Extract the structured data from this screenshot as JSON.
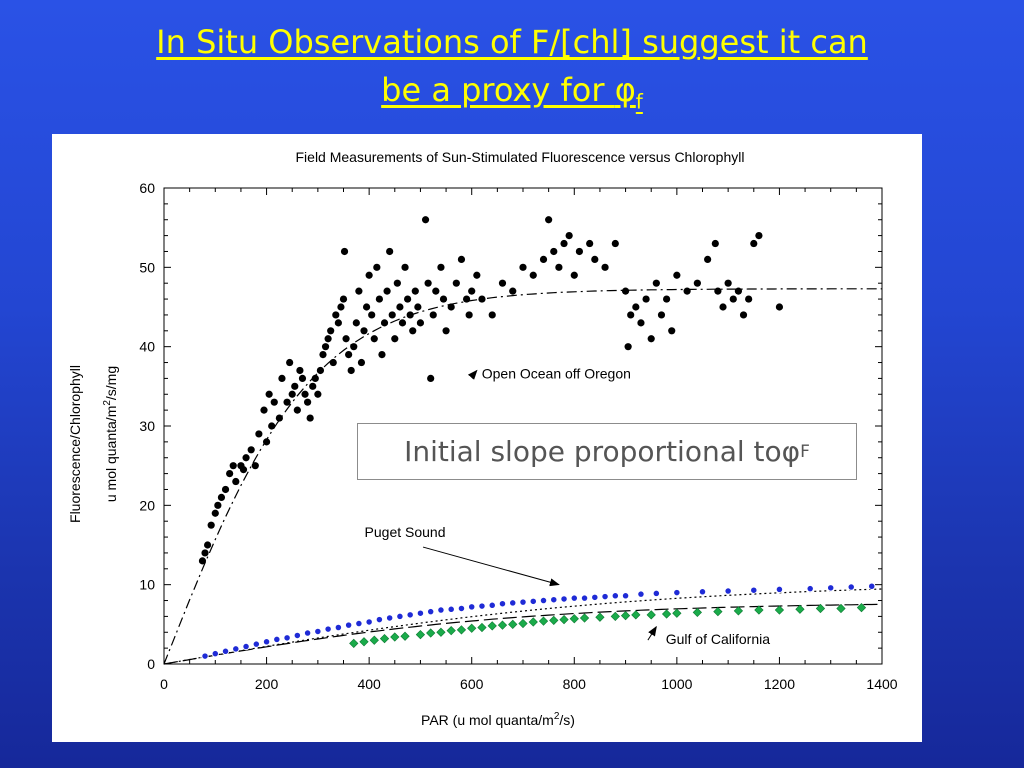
{
  "slide": {
    "title_line1": "In Situ Observations of F/[chl] suggest it can",
    "title_line2": "be a proxy for ",
    "title_symbol": "φ",
    "title_subscript": "f",
    "callout_text": "Initial slope proportional to ",
    "callout_symbol": "φ",
    "callout_subscript": "F",
    "colors": {
      "background": "#2346d2",
      "title": "#ffff00",
      "oregon": "#000000",
      "puget": "#1f2bd6",
      "gulf": "#1aab4a"
    }
  },
  "chart_data": {
    "type": "scatter",
    "title": "Field Measurements of Sun-Stimulated Fluorescence versus Chlorophyll",
    "xlabel_prefix": "PAR  (u mol quanta/m",
    "xlabel_sup": "2",
    "xlabel_suffix": "/s)",
    "ylabel_line1": "Fluorescence/Chlorophyll",
    "ylabel_line2_prefix": "u mol quanta/m",
    "ylabel_line2_sup": "2",
    "ylabel_line2_suffix": "/s/mg",
    "xlim": [
      0,
      1400
    ],
    "ylim": [
      0,
      60
    ],
    "x_ticks": [
      0,
      200,
      400,
      600,
      800,
      1000,
      1200,
      1400
    ],
    "y_ticks": [
      0,
      10,
      20,
      30,
      40,
      50,
      60
    ],
    "grid": false,
    "annotations": [
      {
        "text": "Open Ocean off Oregon",
        "x": 765,
        "y": 36,
        "arrow_to": [
          610,
          37
        ]
      },
      {
        "text": "Puget Sound",
        "x": 470,
        "y": 16,
        "arrow_to": [
          770,
          10
        ]
      },
      {
        "text": "Gulf of California",
        "x": 1080,
        "y": 2.5,
        "arrow_to": [
          960,
          4.7
        ]
      }
    ],
    "series": [
      {
        "name": "Open Ocean off Oregon",
        "marker": "circle",
        "fit": {
          "style": "dash-dot",
          "formula": "47.3*tanh(PAR/290)"
        },
        "points": [
          [
            75,
            13
          ],
          [
            80,
            14
          ],
          [
            85,
            15
          ],
          [
            92,
            17.5
          ],
          [
            100,
            19
          ],
          [
            105,
            20
          ],
          [
            112,
            21
          ],
          [
            120,
            22
          ],
          [
            128,
            24
          ],
          [
            135,
            25
          ],
          [
            140,
            23
          ],
          [
            150,
            25
          ],
          [
            155,
            24.5
          ],
          [
            160,
            26
          ],
          [
            170,
            27
          ],
          [
            178,
            25
          ],
          [
            185,
            29
          ],
          [
            195,
            32
          ],
          [
            200,
            28
          ],
          [
            205,
            34
          ],
          [
            210,
            30
          ],
          [
            215,
            33
          ],
          [
            225,
            31
          ],
          [
            230,
            36
          ],
          [
            240,
            33
          ],
          [
            245,
            38
          ],
          [
            250,
            34
          ],
          [
            255,
            35
          ],
          [
            260,
            32
          ],
          [
            265,
            37
          ],
          [
            270,
            36
          ],
          [
            275,
            34
          ],
          [
            280,
            33
          ],
          [
            285,
            31
          ],
          [
            290,
            35
          ],
          [
            295,
            36
          ],
          [
            300,
            34
          ],
          [
            305,
            37
          ],
          [
            310,
            39
          ],
          [
            315,
            40
          ],
          [
            320,
            41
          ],
          [
            325,
            42
          ],
          [
            330,
            38
          ],
          [
            335,
            44
          ],
          [
            340,
            43
          ],
          [
            345,
            45
          ],
          [
            350,
            46
          ],
          [
            352,
            52
          ],
          [
            355,
            41
          ],
          [
            360,
            39
          ],
          [
            365,
            37
          ],
          [
            370,
            40
          ],
          [
            375,
            43
          ],
          [
            380,
            47
          ],
          [
            385,
            38
          ],
          [
            390,
            42
          ],
          [
            395,
            45
          ],
          [
            400,
            49
          ],
          [
            405,
            44
          ],
          [
            410,
            41
          ],
          [
            415,
            50
          ],
          [
            420,
            46
          ],
          [
            425,
            39
          ],
          [
            430,
            43
          ],
          [
            435,
            47
          ],
          [
            440,
            52
          ],
          [
            445,
            44
          ],
          [
            450,
            41
          ],
          [
            455,
            48
          ],
          [
            460,
            45
          ],
          [
            465,
            43
          ],
          [
            470,
            50
          ],
          [
            475,
            46
          ],
          [
            480,
            44
          ],
          [
            485,
            42
          ],
          [
            490,
            47
          ],
          [
            495,
            45
          ],
          [
            500,
            43
          ],
          [
            510,
            56
          ],
          [
            515,
            48
          ],
          [
            520,
            36
          ],
          [
            525,
            44
          ],
          [
            530,
            47
          ],
          [
            540,
            50
          ],
          [
            545,
            46
          ],
          [
            550,
            42
          ],
          [
            560,
            45
          ],
          [
            570,
            48
          ],
          [
            580,
            51
          ],
          [
            590,
            46
          ],
          [
            595,
            44
          ],
          [
            600,
            47
          ],
          [
            610,
            49
          ],
          [
            620,
            46
          ],
          [
            640,
            44
          ],
          [
            660,
            48
          ],
          [
            680,
            47
          ],
          [
            700,
            50
          ],
          [
            720,
            49
          ],
          [
            740,
            51
          ],
          [
            750,
            56
          ],
          [
            760,
            52
          ],
          [
            770,
            50
          ],
          [
            780,
            53
          ],
          [
            790,
            54
          ],
          [
            800,
            49
          ],
          [
            810,
            52
          ],
          [
            830,
            53
          ],
          [
            840,
            51
          ],
          [
            860,
            50
          ],
          [
            880,
            53
          ],
          [
            900,
            47
          ],
          [
            905,
            40
          ],
          [
            910,
            44
          ],
          [
            920,
            45
          ],
          [
            930,
            43
          ],
          [
            940,
            46
          ],
          [
            950,
            41
          ],
          [
            960,
            48
          ],
          [
            970,
            44
          ],
          [
            980,
            46
          ],
          [
            990,
            42
          ],
          [
            1000,
            49
          ],
          [
            1020,
            47
          ],
          [
            1040,
            48
          ],
          [
            1060,
            51
          ],
          [
            1075,
            53
          ],
          [
            1080,
            47
          ],
          [
            1090,
            45
          ],
          [
            1100,
            48
          ],
          [
            1110,
            46
          ],
          [
            1120,
            47
          ],
          [
            1130,
            44
          ],
          [
            1140,
            46
          ],
          [
            1150,
            53
          ],
          [
            1160,
            54
          ],
          [
            1200,
            45
          ]
        ]
      },
      {
        "name": "Puget Sound",
        "marker": "circle-open",
        "fit": {
          "style": "dotted",
          "formula": "10.4*tanh(PAR/920)"
        },
        "points": [
          [
            80,
            1
          ],
          [
            100,
            1.3
          ],
          [
            120,
            1.6
          ],
          [
            140,
            1.9
          ],
          [
            160,
            2.2
          ],
          [
            180,
            2.5
          ],
          [
            200,
            2.8
          ],
          [
            220,
            3.1
          ],
          [
            240,
            3.3
          ],
          [
            260,
            3.6
          ],
          [
            280,
            3.9
          ],
          [
            300,
            4.1
          ],
          [
            320,
            4.4
          ],
          [
            340,
            4.6
          ],
          [
            360,
            4.9
          ],
          [
            380,
            5.1
          ],
          [
            400,
            5.3
          ],
          [
            420,
            5.6
          ],
          [
            440,
            5.8
          ],
          [
            460,
            6
          ],
          [
            480,
            6.2
          ],
          [
            500,
            6.4
          ],
          [
            520,
            6.6
          ],
          [
            540,
            6.8
          ],
          [
            560,
            6.9
          ],
          [
            580,
            7
          ],
          [
            600,
            7.2
          ],
          [
            620,
            7.3
          ],
          [
            640,
            7.4
          ],
          [
            660,
            7.6
          ],
          [
            680,
            7.7
          ],
          [
            700,
            7.8
          ],
          [
            720,
            7.9
          ],
          [
            740,
            8
          ],
          [
            760,
            8.1
          ],
          [
            780,
            8.2
          ],
          [
            800,
            8.3
          ],
          [
            820,
            8.3
          ],
          [
            840,
            8.4
          ],
          [
            860,
            8.5
          ],
          [
            880,
            8.6
          ],
          [
            900,
            8.6
          ],
          [
            930,
            8.8
          ],
          [
            960,
            8.9
          ],
          [
            1000,
            9
          ],
          [
            1050,
            9.1
          ],
          [
            1100,
            9.2
          ],
          [
            1150,
            9.3
          ],
          [
            1200,
            9.4
          ],
          [
            1260,
            9.5
          ],
          [
            1300,
            9.6
          ],
          [
            1340,
            9.7
          ],
          [
            1380,
            9.8
          ]
        ]
      },
      {
        "name": "Gulf of California",
        "marker": "diamond",
        "fit": {
          "style": "long-dash",
          "formula": "7.8*tanh(PAR/700)"
        },
        "points": [
          [
            370,
            2.6
          ],
          [
            390,
            2.8
          ],
          [
            410,
            3
          ],
          [
            430,
            3.2
          ],
          [
            450,
            3.4
          ],
          [
            470,
            3.5
          ],
          [
            500,
            3.7
          ],
          [
            520,
            3.9
          ],
          [
            540,
            4
          ],
          [
            560,
            4.2
          ],
          [
            580,
            4.3
          ],
          [
            600,
            4.5
          ],
          [
            620,
            4.6
          ],
          [
            640,
            4.8
          ],
          [
            660,
            4.9
          ],
          [
            680,
            5
          ],
          [
            700,
            5.1
          ],
          [
            720,
            5.3
          ],
          [
            740,
            5.4
          ],
          [
            760,
            5.5
          ],
          [
            780,
            5.6
          ],
          [
            800,
            5.7
          ],
          [
            820,
            5.8
          ],
          [
            850,
            5.9
          ],
          [
            880,
            6
          ],
          [
            900,
            6.1
          ],
          [
            920,
            6.2
          ],
          [
            950,
            6.2
          ],
          [
            980,
            6.3
          ],
          [
            1000,
            6.4
          ],
          [
            1040,
            6.5
          ],
          [
            1080,
            6.6
          ],
          [
            1120,
            6.7
          ],
          [
            1160,
            6.8
          ],
          [
            1200,
            6.8
          ],
          [
            1240,
            6.9
          ],
          [
            1280,
            7
          ],
          [
            1320,
            7
          ],
          [
            1360,
            7.1
          ]
        ]
      }
    ]
  }
}
